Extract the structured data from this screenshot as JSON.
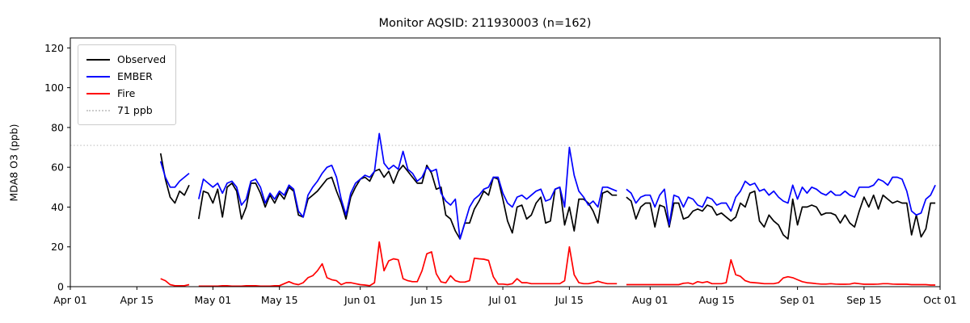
{
  "figure": {
    "title": "Monitor AQSID: 211930003 (n=162)",
    "ylabel": "MDA8 O3 (ppb)"
  },
  "legend": {
    "position": "upper left",
    "items": [
      {
        "label": "Observed",
        "color": "#000000",
        "style": "solid"
      },
      {
        "label": "EMBER",
        "color": "#0000ff",
        "style": "solid"
      },
      {
        "label": "Fire",
        "color": "#ff0000",
        "style": "solid"
      },
      {
        "label": "71 ppb",
        "color": "#cccccc",
        "style": "dotted"
      }
    ]
  },
  "chart_data": {
    "type": "line",
    "title": "Monitor AQSID: 211930003 (n=162)",
    "xlabel": "",
    "ylabel": "MDA8 O3 (ppb)",
    "ylim": [
      0,
      125
    ],
    "y_ticks": [
      0,
      20,
      40,
      60,
      80,
      100,
      120
    ],
    "x_ticks": [
      {
        "label": "Apr 01",
        "day": 0
      },
      {
        "label": "Apr 15",
        "day": 14
      },
      {
        "label": "May 01",
        "day": 30
      },
      {
        "label": "May 15",
        "day": 44
      },
      {
        "label": "Jun 01",
        "day": 61
      },
      {
        "label": "Jun 15",
        "day": 75
      },
      {
        "label": "Jul 01",
        "day": 91
      },
      {
        "label": "Jul 15",
        "day": 105
      },
      {
        "label": "Aug 01",
        "day": 122
      },
      {
        "label": "Aug 15",
        "day": 136
      },
      {
        "label": "Sep 01",
        "day": 153
      },
      {
        "label": "Sep 15",
        "day": 167
      },
      {
        "label": "Oct 01",
        "day": 183
      }
    ],
    "x_axis_days_total": 183,
    "x_first_day": 19,
    "x_start_date": "Apr 20",
    "x_end_date": "Sep 30",
    "missing_dates": [
      "Apr 27",
      "Jul 26"
    ],
    "n_points": 162,
    "grid": false,
    "threshold": {
      "label": "71 ppb",
      "value": 71,
      "color": "#cccccc",
      "style": "dotted"
    },
    "series": [
      {
        "name": "Observed",
        "color": "#000000",
        "values": [
          67,
          54,
          45,
          42,
          48,
          46,
          51,
          null,
          34,
          48,
          47,
          42,
          49,
          35,
          50,
          52,
          48,
          34,
          40,
          52,
          52,
          47,
          40,
          46,
          42,
          47,
          44,
          50,
          48,
          36,
          35,
          44,
          46,
          48,
          51,
          54,
          55,
          48,
          42,
          34,
          45,
          50,
          54,
          55,
          53,
          58,
          59,
          55,
          58,
          52,
          58,
          61,
          58,
          55,
          52,
          52,
          61,
          57,
          49,
          50,
          36,
          34,
          28,
          24,
          32,
          32,
          39,
          43,
          48,
          46,
          55,
          54,
          44,
          33,
          27,
          40,
          41,
          34,
          36,
          42,
          45,
          32,
          33,
          49,
          50,
          31,
          40,
          28,
          44,
          44,
          42,
          38,
          32,
          47,
          48,
          46,
          46,
          null,
          45,
          43,
          34,
          40,
          42,
          42,
          30,
          41,
          40,
          30,
          42,
          42,
          34,
          35,
          38,
          39,
          38,
          41,
          40,
          36,
          37,
          35,
          33,
          35,
          42,
          40,
          47,
          48,
          33,
          30,
          36,
          33,
          31,
          26,
          24,
          44,
          31,
          40,
          40,
          41,
          40,
          36,
          37,
          37,
          36,
          32,
          36,
          32,
          30,
          38,
          45,
          40,
          46,
          39,
          46,
          44,
          42,
          43,
          42,
          42,
          26,
          36,
          25,
          29,
          42,
          42
        ]
      },
      {
        "name": "EMBER",
        "color": "#0000ff",
        "values": [
          63,
          55,
          50,
          50,
          53,
          55,
          57,
          null,
          44,
          54,
          52,
          50,
          52,
          47,
          52,
          53,
          50,
          41,
          44,
          53,
          54,
          50,
          42,
          47,
          44,
          48,
          46,
          51,
          49,
          38,
          35,
          46,
          50,
          53,
          57,
          60,
          61,
          55,
          44,
          36,
          47,
          52,
          54,
          56,
          55,
          58,
          77,
          62,
          59,
          61,
          59,
          68,
          59,
          57,
          53,
          55,
          60,
          58,
          59,
          47,
          43,
          41,
          44,
          24,
          32,
          40,
          44,
          46,
          49,
          50,
          55,
          55,
          47,
          42,
          40,
          45,
          46,
          44,
          46,
          48,
          49,
          43,
          44,
          49,
          50,
          40,
          70,
          56,
          48,
          45,
          41,
          43,
          40,
          50,
          50,
          49,
          48,
          null,
          49,
          47,
          42,
          45,
          46,
          46,
          40,
          46,
          49,
          31,
          46,
          45,
          40,
          45,
          44,
          41,
          40,
          45,
          44,
          41,
          42,
          42,
          38,
          45,
          48,
          53,
          51,
          52,
          48,
          49,
          46,
          48,
          45,
          43,
          42,
          51,
          44,
          50,
          47,
          50,
          49,
          47,
          46,
          48,
          46,
          46,
          48,
          46,
          45,
          50,
          50,
          50,
          51,
          54,
          53,
          51,
          55,
          55,
          54,
          48,
          38,
          36,
          37,
          44,
          46,
          51
        ]
      },
      {
        "name": "Fire",
        "color": "#ff0000",
        "values": [
          4,
          3,
          1,
          0.5,
          0.5,
          0.5,
          1,
          null,
          0.3,
          0.3,
          0.3,
          0.3,
          0.3,
          0.5,
          0.5,
          0.3,
          0.3,
          0.3,
          0.5,
          0.5,
          0.5,
          0.3,
          0.3,
          0.3,
          0.5,
          0.5,
          1.5,
          2.5,
          1.5,
          1,
          2,
          4.5,
          5.5,
          8,
          11.5,
          4.5,
          3.5,
          3,
          1,
          2,
          2,
          1.5,
          1,
          0.8,
          0.5,
          2,
          22.5,
          8,
          13,
          14,
          13.5,
          4,
          3,
          2.5,
          2.5,
          8,
          16.5,
          17.5,
          6.5,
          2.4,
          1.9,
          5.5,
          3,
          2.3,
          2.3,
          3,
          14.3,
          14,
          13.8,
          13.2,
          5,
          1.3,
          1.3,
          1,
          1.5,
          4,
          2,
          2,
          1.5,
          1.5,
          1.5,
          1.5,
          1.5,
          1.5,
          1.5,
          3,
          20,
          6,
          2,
          1.5,
          1.5,
          2,
          2.7,
          2,
          1.5,
          1.5,
          1.5,
          null,
          1,
          1,
          1,
          1,
          1,
          1,
          1,
          1,
          1,
          1,
          1,
          1,
          1.7,
          1.9,
          1.3,
          2.5,
          2,
          2.5,
          1.5,
          1.5,
          1.5,
          2,
          13.5,
          6,
          5.2,
          3,
          2.2,
          2,
          1.8,
          1.5,
          1.5,
          1.5,
          2,
          4.4,
          5,
          4.5,
          3.5,
          2.5,
          2,
          1.8,
          1.5,
          1.3,
          1.3,
          1.5,
          1.3,
          1.2,
          1.2,
          1.3,
          1.8,
          1.5,
          1.2,
          1.2,
          1.2,
          1.3,
          1.5,
          1.5,
          1.3,
          1.2,
          1.2,
          1.2,
          1,
          1,
          1,
          1,
          0.8,
          0.8
        ]
      }
    ]
  }
}
